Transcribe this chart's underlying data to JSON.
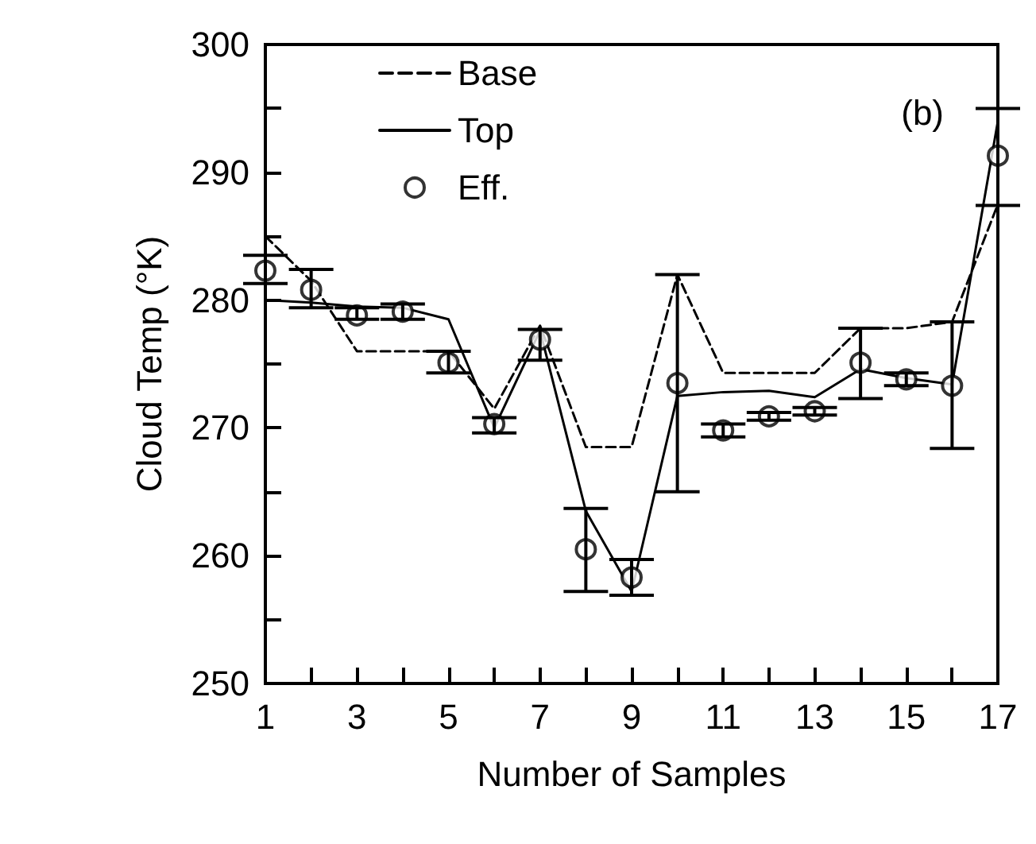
{
  "chart_data": {
    "type": "line",
    "xlabel": "Number of Samples",
    "ylabel": "Cloud Temp (°K)",
    "annotations": [
      "(b)"
    ],
    "x": [
      1,
      2,
      3,
      4,
      5,
      6,
      7,
      8,
      9,
      10,
      11,
      12,
      13,
      14,
      15,
      16,
      17
    ],
    "xlim": [
      1,
      17
    ],
    "xticks": [
      1,
      {
        "value": 2,
        "label": null
      },
      3,
      {
        "value": 4,
        "label": null
      },
      5,
      {
        "value": 6,
        "label": null
      },
      7,
      {
        "value": 8,
        "label": null
      },
      9,
      {
        "value": 10,
        "label": null
      },
      11,
      {
        "value": 12,
        "label": null
      },
      13,
      {
        "value": 14,
        "label": null
      },
      15,
      {
        "value": 16,
        "label": null
      },
      17
    ],
    "ylim": [
      250,
      300
    ],
    "yticks": [
      250,
      {
        "value": 255,
        "label": null
      },
      260,
      {
        "value": 265,
        "label": null
      },
      270,
      {
        "value": 275,
        "label": null
      },
      280,
      {
        "value": 285,
        "label": null
      },
      290,
      {
        "value": 295,
        "label": null
      },
      300
    ],
    "grid": false,
    "legend": "top left",
    "series": [
      {
        "name": "Base",
        "color": "#000000",
        "line_style": "dashed",
        "marker": "none",
        "values": [
          285,
          281.5,
          276,
          276,
          276,
          271.5,
          278,
          268.5,
          268.5,
          282,
          274.3,
          274.3,
          274.3,
          277.8,
          277.8,
          278.3,
          287.5
        ]
      },
      {
        "name": "Top",
        "color": "#000000",
        "line_style": "solid",
        "marker": "none",
        "values": [
          280,
          279.8,
          279.5,
          279.4,
          278.5,
          270,
          277.6,
          263.5,
          257.2,
          272.5,
          272.8,
          272.9,
          272.4,
          274.6,
          273.9,
          273.4,
          294
        ]
      },
      {
        "name": "Eff.",
        "color": "#000000",
        "type": "scatter",
        "marker": "circle",
        "values": [
          282.3,
          280.8,
          278.8,
          279.1,
          275.1,
          270.3,
          276.9,
          260.5,
          258.3,
          273.5,
          269.8,
          270.9,
          271.3,
          275.1,
          273.8,
          273.3,
          291.3
        ],
        "errors": [
          [
            281.3,
            283.5
          ],
          [
            279.4,
            282.4
          ],
          [
            278.5,
            279.4
          ],
          [
            278.5,
            279.7
          ],
          [
            274.3,
            276
          ],
          [
            269.6,
            270.8
          ],
          [
            275.3,
            277.7
          ],
          [
            257.2,
            263.7
          ],
          [
            256.9,
            259.7
          ],
          [
            265,
            282
          ],
          [
            269.3,
            270.3
          ],
          [
            270.6,
            271.2
          ],
          [
            271,
            271.6
          ],
          [
            272.3,
            277.8
          ],
          [
            273.3,
            274.3
          ],
          [
            268.4,
            278.3
          ],
          [
            287.4,
            295
          ]
        ]
      }
    ]
  }
}
